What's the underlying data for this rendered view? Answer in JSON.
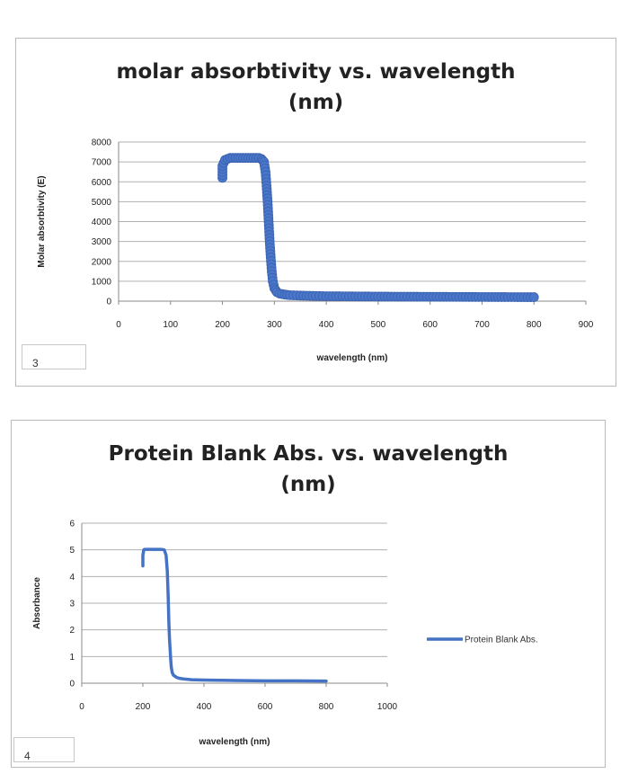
{
  "chart_data": [
    {
      "type": "scatter",
      "title": "molar absorbtivity vs. wavelength (nm)",
      "title_lines": [
        "molar absorbtivity vs. wavelength",
        "(nm)"
      ],
      "xlabel": "wavelength (nm)",
      "ylabel": "Molar absorbtivity (E)",
      "xlim": [
        0,
        900
      ],
      "ylim": [
        0,
        8000
      ],
      "x_ticks": [
        0,
        100,
        200,
        300,
        400,
        500,
        600,
        700,
        800,
        900
      ],
      "y_ticks": [
        0,
        1000,
        2000,
        3000,
        4000,
        5000,
        6000,
        7000,
        8000
      ],
      "grid": true,
      "legend": "none",
      "box_label": "3",
      "series": [
        {
          "color": "#4472c4",
          "x": [
            200,
            200,
            205,
            210,
            215,
            220,
            230,
            240,
            250,
            260,
            270,
            275,
            280,
            283,
            285,
            287,
            289,
            291,
            293,
            295,
            297,
            300,
            305,
            310,
            320,
            330,
            350,
            380,
            400,
            450,
            500,
            550,
            600,
            650,
            700,
            750,
            800
          ],
          "y": [
            6200,
            6800,
            7100,
            7150,
            7200,
            7200,
            7200,
            7200,
            7200,
            7200,
            7200,
            7150,
            7000,
            6500,
            5800,
            5000,
            4000,
            3000,
            2200,
            1500,
            1000,
            650,
            450,
            380,
            330,
            300,
            280,
            260,
            250,
            240,
            230,
            225,
            220,
            215,
            210,
            205,
            200
          ]
        }
      ]
    },
    {
      "type": "line",
      "title": "Protein Blank Abs. vs. wavelength (nm)",
      "title_lines": [
        "Protein Blank Abs. vs. wavelength",
        "(nm)"
      ],
      "xlabel": "wavelength (nm)",
      "ylabel": "Absorbance",
      "xlim": [
        0,
        1000
      ],
      "ylim": [
        0,
        6
      ],
      "x_ticks": [
        0,
        200,
        400,
        600,
        800,
        1000
      ],
      "y_ticks": [
        0,
        1,
        2,
        3,
        4,
        5,
        6
      ],
      "grid": true,
      "legend": "right",
      "box_label": "4",
      "series": [
        {
          "name": "Protein Blank Abs.",
          "color": "#4472c4",
          "x": [
            200,
            200,
            203,
            206,
            210,
            220,
            240,
            260,
            270,
            276,
            280,
            283,
            285,
            287,
            289,
            291,
            293,
            296,
            300,
            310,
            320,
            340,
            360,
            400,
            450,
            500,
            600,
            700,
            800
          ],
          "y": [
            4.4,
            4.8,
            5.0,
            5.02,
            5.02,
            5.02,
            5.02,
            5.02,
            5.0,
            4.8,
            4.2,
            3.2,
            2.3,
            1.7,
            1.3,
            0.9,
            0.6,
            0.4,
            0.3,
            0.22,
            0.18,
            0.15,
            0.13,
            0.12,
            0.11,
            0.1,
            0.09,
            0.09,
            0.08
          ]
        }
      ]
    }
  ]
}
